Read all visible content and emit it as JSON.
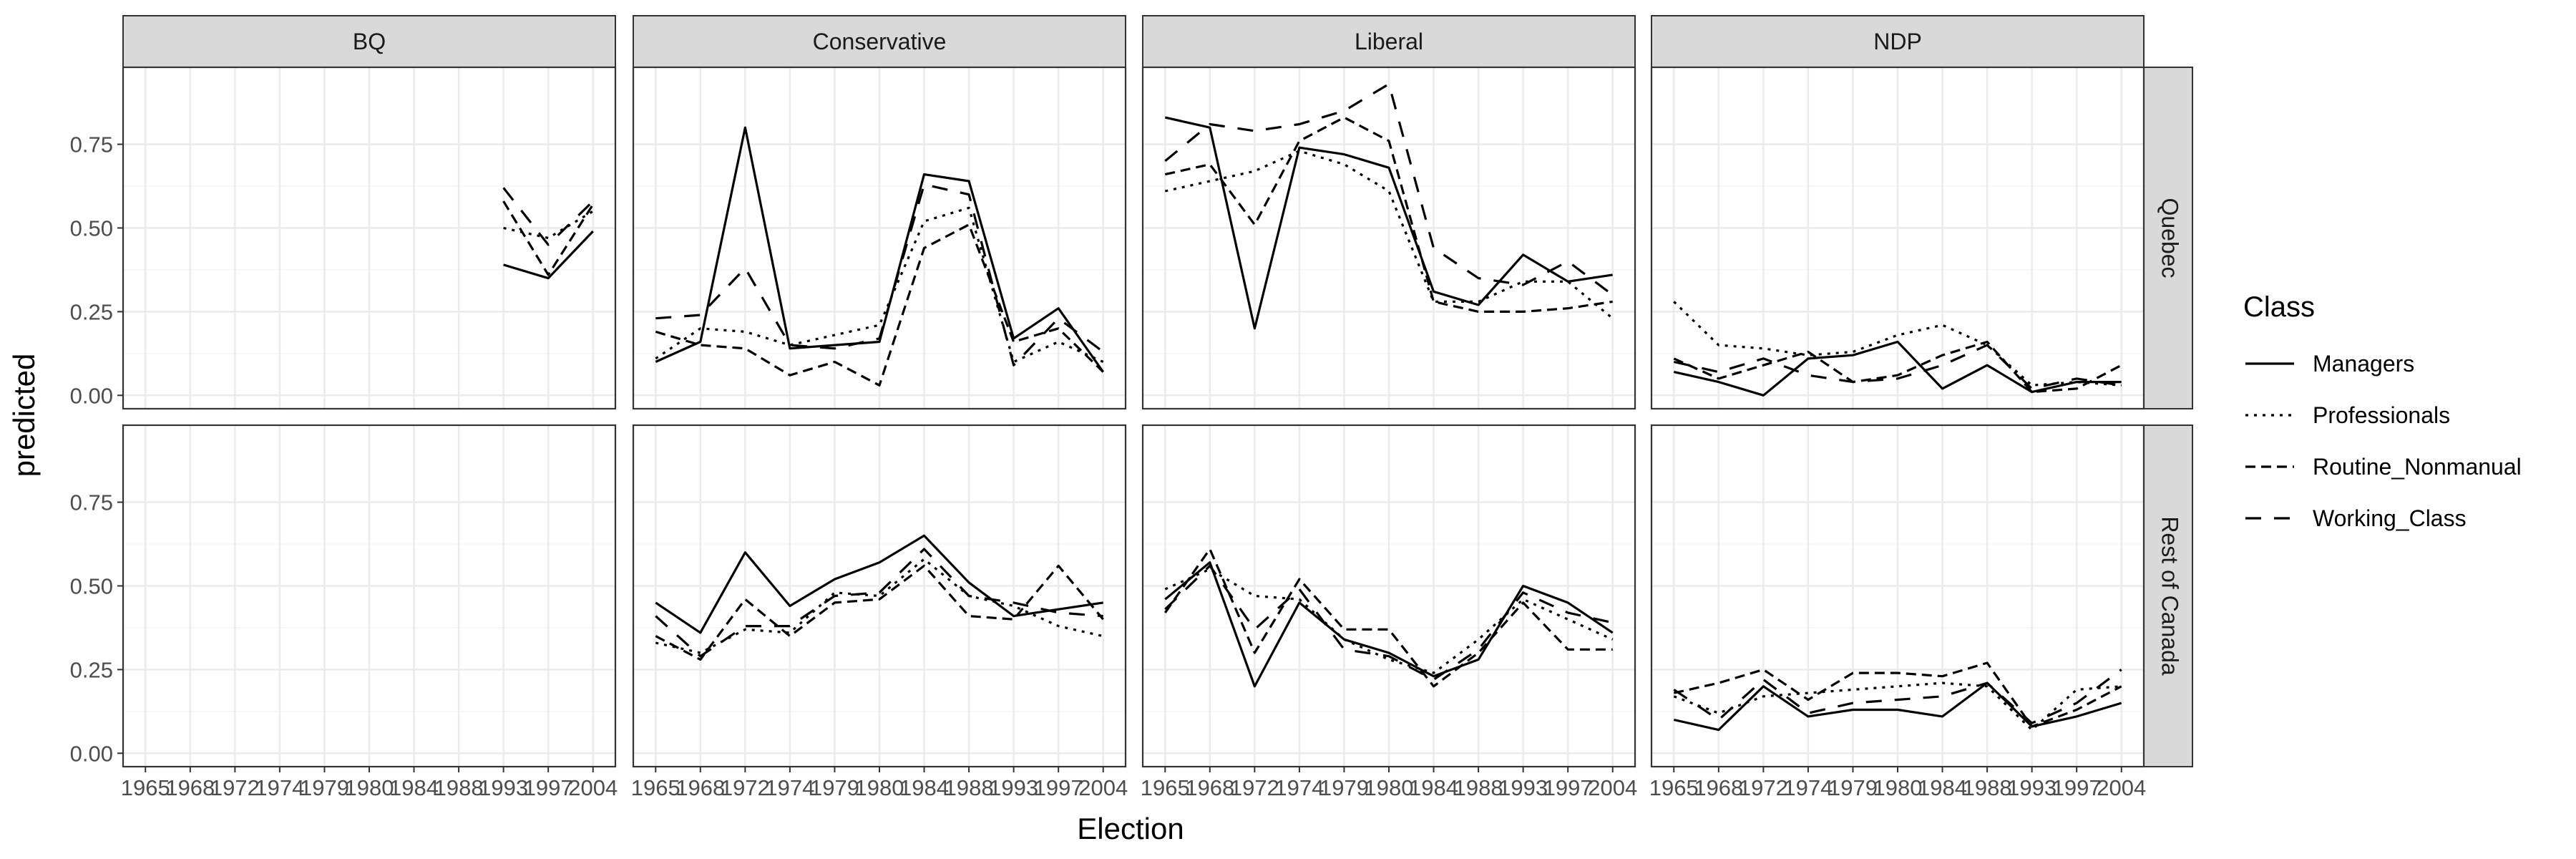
{
  "chart_data": {
    "type": "line",
    "facets": {
      "columns": [
        "BQ",
        "Conservative",
        "Liberal",
        "NDP"
      ],
      "rows": [
        "Quebec",
        "Rest of Canada"
      ]
    },
    "x": [
      1965,
      1968,
      1972,
      1974,
      1979,
      1980,
      1984,
      1988,
      1993,
      1997,
      2004
    ],
    "x_tick_labels": [
      "1965",
      "1968",
      "1972",
      "1974",
      "1979",
      "1980",
      "1984",
      "1988",
      "1993",
      "1997",
      "2004"
    ],
    "xlabel": "Election",
    "ylabel": "predicted",
    "ylim": [
      -0.04,
      0.98
    ],
    "y_ticks": [
      0.0,
      0.25,
      0.5,
      0.75
    ],
    "y_tick_labels": [
      "0.00",
      "0.25",
      "0.50",
      "0.75"
    ],
    "grid": true,
    "legend": {
      "title": "Class",
      "position": "right",
      "entries": [
        "Managers",
        "Professionals",
        "Routine_Nonmanual",
        "Working_Class"
      ]
    },
    "series": [
      {
        "name": "Managers",
        "party": "BQ",
        "region": "Quebec",
        "values": [
          null,
          null,
          null,
          null,
          null,
          null,
          null,
          null,
          0.39,
          0.35,
          0.49
        ]
      },
      {
        "name": "Professionals",
        "party": "BQ",
        "region": "Quebec",
        "values": [
          null,
          null,
          null,
          null,
          null,
          null,
          null,
          null,
          0.5,
          0.47,
          0.55
        ]
      },
      {
        "name": "Routine_Nonmanual",
        "party": "BQ",
        "region": "Quebec",
        "values": [
          null,
          null,
          null,
          null,
          null,
          null,
          null,
          null,
          0.58,
          0.36,
          0.57
        ]
      },
      {
        "name": "Working_Class",
        "party": "BQ",
        "region": "Quebec",
        "values": [
          null,
          null,
          null,
          null,
          null,
          null,
          null,
          null,
          0.62,
          0.45,
          0.58
        ]
      },
      {
        "name": "Managers",
        "party": "Conservative",
        "region": "Quebec",
        "values": [
          0.1,
          0.16,
          0.8,
          0.14,
          0.15,
          0.16,
          0.66,
          0.64,
          0.17,
          0.26,
          0.07
        ]
      },
      {
        "name": "Professionals",
        "party": "Conservative",
        "region": "Quebec",
        "values": [
          0.11,
          0.2,
          0.19,
          0.15,
          0.18,
          0.21,
          0.52,
          0.56,
          0.1,
          0.16,
          0.1
        ]
      },
      {
        "name": "Routine_Nonmanual",
        "party": "Conservative",
        "region": "Quebec",
        "values": [
          0.19,
          0.15,
          0.14,
          0.06,
          0.1,
          0.03,
          0.44,
          0.51,
          0.16,
          0.2,
          0.07
        ]
      },
      {
        "name": "Working_Class",
        "party": "Conservative",
        "region": "Quebec",
        "values": [
          0.23,
          0.24,
          0.38,
          0.15,
          0.14,
          0.17,
          0.63,
          0.6,
          0.09,
          0.23,
          0.13
        ]
      },
      {
        "name": "Managers",
        "party": "Liberal",
        "region": "Quebec",
        "values": [
          0.83,
          0.8,
          0.2,
          0.74,
          0.72,
          0.68,
          0.31,
          0.27,
          0.42,
          0.34,
          0.36
        ]
      },
      {
        "name": "Professionals",
        "party": "Liberal",
        "region": "Quebec",
        "values": [
          0.61,
          0.64,
          0.67,
          0.73,
          0.69,
          0.61,
          0.28,
          0.28,
          0.34,
          0.34,
          0.23
        ]
      },
      {
        "name": "Routine_Nonmanual",
        "party": "Liberal",
        "region": "Quebec",
        "values": [
          0.66,
          0.69,
          0.51,
          0.76,
          0.83,
          0.76,
          0.28,
          0.25,
          0.25,
          0.26,
          0.28
        ]
      },
      {
        "name": "Working_Class",
        "party": "Liberal",
        "region": "Quebec",
        "values": [
          0.7,
          0.81,
          0.79,
          0.81,
          0.85,
          0.93,
          0.44,
          0.35,
          0.33,
          0.4,
          0.3
        ]
      },
      {
        "name": "Managers",
        "party": "NDP",
        "region": "Quebec",
        "values": [
          0.07,
          0.04,
          0.0,
          0.11,
          0.12,
          0.16,
          0.02,
          0.09,
          0.01,
          0.04,
          0.04
        ]
      },
      {
        "name": "Professionals",
        "party": "NDP",
        "region": "Quebec",
        "values": [
          0.28,
          0.15,
          0.14,
          0.12,
          0.13,
          0.18,
          0.21,
          0.15,
          0.03,
          0.04,
          0.03
        ]
      },
      {
        "name": "Routine_Nonmanual",
        "party": "NDP",
        "region": "Quebec",
        "values": [
          0.11,
          0.05,
          0.09,
          0.13,
          0.04,
          0.06,
          0.12,
          0.16,
          0.01,
          0.02,
          0.09
        ]
      },
      {
        "name": "Working_Class",
        "party": "NDP",
        "region": "Quebec",
        "values": [
          0.1,
          0.07,
          0.11,
          0.06,
          0.04,
          0.05,
          0.09,
          0.15,
          0.02,
          0.05,
          0.03
        ]
      },
      {
        "name": "Managers",
        "party": "Conservative",
        "region": "Rest of Canada",
        "values": [
          0.45,
          0.36,
          0.6,
          0.44,
          0.52,
          0.57,
          0.65,
          0.51,
          0.41,
          0.43,
          0.45
        ]
      },
      {
        "name": "Professionals",
        "party": "Conservative",
        "region": "Rest of Canada",
        "values": [
          0.33,
          0.3,
          0.37,
          0.36,
          0.48,
          0.47,
          0.58,
          0.47,
          0.44,
          0.38,
          0.35
        ]
      },
      {
        "name": "Routine_Nonmanual",
        "party": "Conservative",
        "region": "Rest of Canada",
        "values": [
          0.35,
          0.28,
          0.46,
          0.35,
          0.45,
          0.46,
          0.56,
          0.41,
          0.4,
          0.56,
          0.4
        ]
      },
      {
        "name": "Working_Class",
        "party": "Conservative",
        "region": "Rest of Canada",
        "values": [
          0.41,
          0.29,
          0.38,
          0.38,
          0.47,
          0.48,
          0.61,
          0.47,
          0.45,
          0.42,
          0.41
        ]
      },
      {
        "name": "Managers",
        "party": "Liberal",
        "region": "Rest of Canada",
        "values": [
          0.46,
          0.57,
          0.2,
          0.45,
          0.34,
          0.3,
          0.23,
          0.28,
          0.5,
          0.45,
          0.36
        ]
      },
      {
        "name": "Professionals",
        "party": "Liberal",
        "region": "Rest of Canada",
        "values": [
          0.49,
          0.55,
          0.47,
          0.46,
          0.34,
          0.28,
          0.24,
          0.34,
          0.46,
          0.4,
          0.34
        ]
      },
      {
        "name": "Routine_Nonmanual",
        "party": "Liberal",
        "region": "Rest of Canada",
        "values": [
          0.42,
          0.61,
          0.3,
          0.52,
          0.37,
          0.37,
          0.2,
          0.3,
          0.45,
          0.31,
          0.31
        ]
      },
      {
        "name": "Working_Class",
        "party": "Liberal",
        "region": "Rest of Canada",
        "values": [
          0.43,
          0.56,
          0.37,
          0.49,
          0.31,
          0.29,
          0.22,
          0.31,
          0.48,
          0.42,
          0.39
        ]
      },
      {
        "name": "Managers",
        "party": "NDP",
        "region": "Rest of Canada",
        "values": [
          0.1,
          0.07,
          0.2,
          0.11,
          0.13,
          0.13,
          0.11,
          0.21,
          0.08,
          0.11,
          0.15
        ]
      },
      {
        "name": "Professionals",
        "party": "NDP",
        "region": "Rest of Canada",
        "values": [
          0.17,
          0.12,
          0.17,
          0.18,
          0.19,
          0.2,
          0.21,
          0.2,
          0.07,
          0.19,
          0.2
        ]
      },
      {
        "name": "Routine_Nonmanual",
        "party": "NDP",
        "region": "Rest of Canada",
        "values": [
          0.18,
          0.21,
          0.25,
          0.16,
          0.24,
          0.24,
          0.23,
          0.27,
          0.08,
          0.13,
          0.2
        ]
      },
      {
        "name": "Working_Class",
        "party": "NDP",
        "region": "Rest of Canada",
        "values": [
          0.19,
          0.1,
          0.22,
          0.12,
          0.15,
          0.16,
          0.17,
          0.21,
          0.09,
          0.15,
          0.25
        ]
      }
    ]
  },
  "colors": {
    "panel_border": "#333333",
    "strip_fill": "#d9d9d9",
    "grid_major": "#ebebeb",
    "grid_minor": "#f5f5f5",
    "line": "#000000",
    "tick_text": "#4d4d4d"
  }
}
